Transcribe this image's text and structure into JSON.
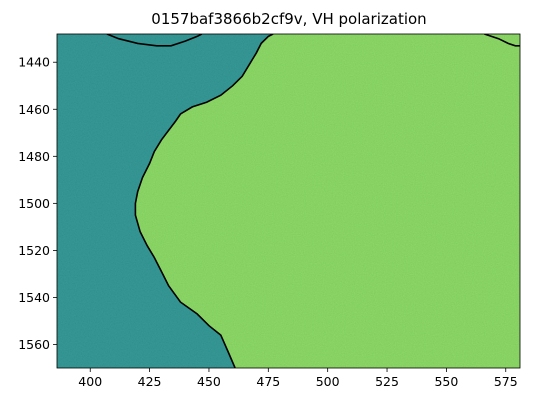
{
  "chart_data": {
    "type": "heatmap",
    "title": "0157baf3866b2cf9v, VH polarization",
    "xlabel": "",
    "ylabel": "",
    "xlim": [
      386,
      581
    ],
    "ylim": [
      1570,
      1428
    ],
    "y_inverted": true,
    "x_ticks": [
      400,
      425,
      450,
      475,
      500,
      525,
      550,
      575
    ],
    "y_ticks": [
      1440,
      1460,
      1480,
      1500,
      1520,
      1540,
      1560
    ],
    "colormap": "viridis",
    "colors": {
      "water": "#2b8e8a",
      "land": "#7ccc58",
      "land_dark": "#4fb46a",
      "coastline": "#000000"
    },
    "coastline_main": [
      [
        461,
        1570
      ],
      [
        458,
        1563
      ],
      [
        455,
        1556
      ],
      [
        450,
        1552
      ],
      [
        445,
        1547
      ],
      [
        438,
        1542
      ],
      [
        433,
        1535
      ],
      [
        430,
        1529
      ],
      [
        427,
        1523
      ],
      [
        424,
        1518
      ],
      [
        421,
        1512
      ],
      [
        419,
        1505
      ],
      [
        419,
        1500
      ],
      [
        420,
        1495
      ],
      [
        422,
        1489
      ],
      [
        425,
        1483
      ],
      [
        427,
        1478
      ],
      [
        430,
        1473
      ],
      [
        433,
        1469
      ],
      [
        436,
        1465
      ],
      [
        438,
        1462
      ],
      [
        443,
        1459
      ],
      [
        449,
        1457
      ],
      [
        455,
        1454
      ],
      [
        460,
        1450
      ],
      [
        464,
        1446
      ],
      [
        467,
        1441
      ],
      [
        470,
        1436
      ],
      [
        472,
        1432
      ],
      [
        475,
        1429
      ],
      [
        477,
        1428
      ]
    ],
    "coastline_top_left": [
      [
        407,
        1428
      ],
      [
        412,
        1430
      ],
      [
        420,
        1432
      ],
      [
        428,
        1433
      ],
      [
        434,
        1433
      ],
      [
        440,
        1431
      ],
      [
        445,
        1429
      ],
      [
        447,
        1428
      ]
    ],
    "coastline_top_right": [
      [
        566,
        1428
      ],
      [
        572,
        1430
      ],
      [
        576,
        1432
      ],
      [
        579,
        1433
      ],
      [
        581,
        1433
      ]
    ]
  }
}
